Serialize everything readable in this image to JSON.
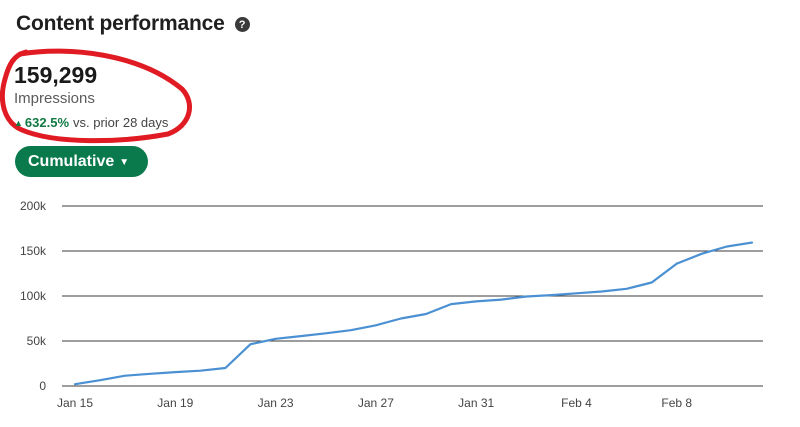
{
  "header": {
    "title": "Content performance",
    "help_icon": "question-circle-icon"
  },
  "metric": {
    "value": "159,299",
    "label": "Impressions",
    "delta_icon": "triangle-up-icon",
    "delta_value": "632.5%",
    "delta_text": "vs. prior 28 days"
  },
  "toggle": {
    "label": "Cumulative",
    "icon": "caret-down-icon",
    "color": "#0a7a4c"
  },
  "annotation": {
    "icon": "hand-drawn-circle",
    "color": "#e01b24"
  },
  "chart_data": {
    "type": "line",
    "title": "",
    "xlabel": "",
    "ylabel": "",
    "ylim": [
      0,
      200000
    ],
    "yticks": [
      0,
      50000,
      100000,
      150000,
      200000
    ],
    "ytick_labels": [
      "0",
      "50k",
      "100k",
      "150k",
      "200k"
    ],
    "xticks": [
      "Jan 15",
      "Jan 19",
      "Jan 23",
      "Jan 27",
      "Jan 31",
      "Feb 4",
      "Feb 8"
    ],
    "x": [
      "Jan 15",
      "Jan 16",
      "Jan 17",
      "Jan 18",
      "Jan 19",
      "Jan 20",
      "Jan 21",
      "Jan 22",
      "Jan 23",
      "Jan 24",
      "Jan 25",
      "Jan 26",
      "Jan 27",
      "Jan 28",
      "Jan 29",
      "Jan 30",
      "Jan 31",
      "Feb 1",
      "Feb 2",
      "Feb 3",
      "Feb 4",
      "Feb 5",
      "Feb 6",
      "Feb 7",
      "Feb 8",
      "Feb 9",
      "Feb 10",
      "Feb 11"
    ],
    "series": [
      {
        "color": "#4a90d2",
        "values": [
          2000,
          6500,
          11500,
          13500,
          15500,
          17000,
          20000,
          46500,
          52500,
          55500,
          58500,
          62000,
          67500,
          75000,
          80000,
          91000,
          94000,
          96000,
          99500,
          101000,
          103000,
          105000,
          108000,
          115000,
          136000,
          147000,
          155000,
          159299
        ]
      }
    ],
    "grid": true,
    "grid_color": "#3b3b3b"
  }
}
